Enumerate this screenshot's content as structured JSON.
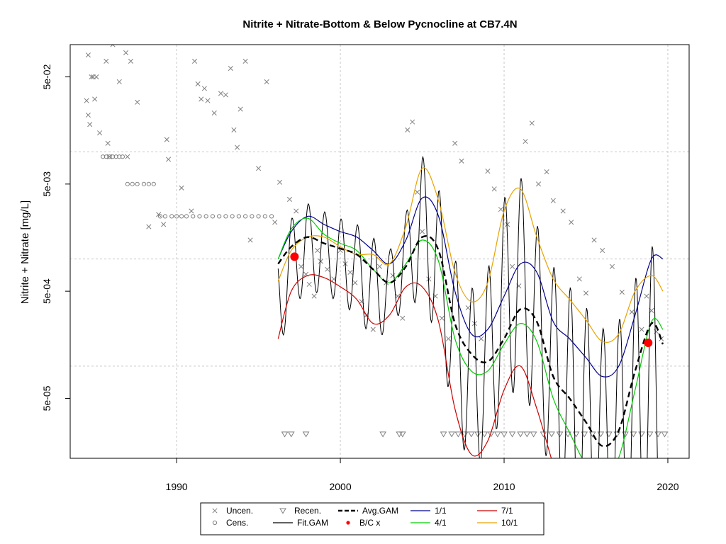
{
  "chart_data": {
    "type": "line",
    "title": "Nitrite + Nitrate-Bottom & Below Pycnocline at CB7.4N",
    "xlabel": "",
    "ylabel": "Nitrite + Nitrate [mg/L]",
    "xlim": [
      1983.5,
      2021.3
    ],
    "ylim_log10": [
      -4.86,
      -1.0
    ],
    "y_scale": "log",
    "x_ticks": [
      1990,
      2000,
      2010,
      2020
    ],
    "x_tick_labels": [
      "1990",
      "2000",
      "2010",
      "2020"
    ],
    "y_ticks": [
      5e-05,
      0.0005,
      0.005,
      0.05
    ],
    "y_tick_labels": [
      "5e-05",
      "5e-04",
      "5e-03",
      "5e-02"
    ],
    "grid_y": [
      0.0001,
      0.001,
      0.01,
      0.1
    ],
    "grid": true,
    "legend_position": "bottom-center",
    "legend": [
      {
        "id": "uncen",
        "label": "Uncen.",
        "symbol": "x",
        "color": "#808080"
      },
      {
        "id": "cens",
        "label": "Cens.",
        "symbol": "circle",
        "color": "#808080"
      },
      {
        "id": "recen",
        "label": "Recen.",
        "symbol": "triangle-down",
        "color": "#808080"
      },
      {
        "id": "fit",
        "label": "Fit.GAM",
        "symbol": "line",
        "color": "#000000"
      },
      {
        "id": "avg",
        "label": "Avg.GAM",
        "symbol": "dashed-line",
        "color": "#000000"
      },
      {
        "id": "bc",
        "label": "B/C x",
        "symbol": "dot",
        "color": "#ff0000"
      },
      {
        "id": "jan",
        "label": "1/1",
        "symbol": "line",
        "color": "#00008b"
      },
      {
        "id": "apr",
        "label": "4/1",
        "symbol": "line",
        "color": "#00cc00"
      },
      {
        "id": "jul",
        "label": "7/1",
        "symbol": "line",
        "color": "#cc0000"
      },
      {
        "id": "oct",
        "label": "10/1",
        "symbol": "line",
        "color": "#e8a200"
      }
    ],
    "avg_gam": {
      "name": "Avg.GAM",
      "x": [
        1996.2,
        1997,
        1998,
        1999,
        2000,
        2001,
        2002,
        2003,
        2004,
        2005,
        2006,
        2007,
        2008,
        2009,
        2010,
        2011,
        2012,
        2013,
        2014,
        2015,
        2016,
        2017,
        2018,
        2019,
        2019.7
      ],
      "y": [
        0.0009,
        0.0013,
        0.0016,
        0.0014,
        0.00125,
        0.0011,
        0.0008,
        0.0006,
        0.00085,
        0.0016,
        0.0012,
        0.00025,
        0.00013,
        0.00011,
        0.00018,
        0.00034,
        0.00026,
        8e-05,
        5e-05,
        3e-05,
        1.8e-05,
        2.5e-05,
        9e-05,
        0.00025,
        0.00016
      ]
    },
    "seasonal": [
      {
        "name": "1/1",
        "x": [
          1996.2,
          1997,
          1998,
          1999,
          2000,
          2001,
          2002,
          2003,
          2004,
          2005,
          2006,
          2007,
          2008,
          2009,
          2010,
          2011,
          2012,
          2013,
          2014,
          2015,
          2016,
          2017,
          2018,
          2019,
          2019.7
        ],
        "y": [
          0.001,
          0.0018,
          0.0025,
          0.0021,
          0.0018,
          0.0016,
          0.0012,
          0.0009,
          0.0015,
          0.0037,
          0.0025,
          0.0005,
          0.0002,
          0.00022,
          0.00045,
          0.0009,
          0.00075,
          0.00026,
          0.00018,
          0.00012,
          8e-05,
          0.0001,
          0.0003,
          0.001,
          0.001
        ]
      },
      {
        "name": "4/1",
        "x": [
          1996.2,
          1997,
          1998,
          1999,
          2000,
          2001,
          2002,
          2003,
          2004,
          2005,
          2006,
          2007,
          2008,
          2009,
          2010,
          2011,
          2012,
          2013,
          2014,
          2015,
          2016,
          2017,
          2018,
          2019,
          2019.7
        ],
        "y": [
          0.001,
          0.0019,
          0.0024,
          0.0017,
          0.0014,
          0.0012,
          0.0008,
          0.0006,
          0.0009,
          0.0015,
          0.00095,
          0.00018,
          9e-05,
          9e-05,
          0.00016,
          0.00025,
          0.00017,
          5e-05,
          2.4e-05,
          1.2e-05,
          9e-06,
          1.4e-05,
          6e-05,
          0.00026,
          0.00022
        ]
      },
      {
        "name": "7/1",
        "x": [
          1996.2,
          1997,
          1998,
          1999,
          2000,
          2001,
          2002,
          2003,
          2004,
          2005,
          2006,
          2007,
          2008,
          2009,
          2010,
          2011,
          2012,
          2013,
          2014
        ],
        "y": [
          0.00018,
          0.0005,
          0.0007,
          0.00067,
          0.00055,
          0.00042,
          0.00025,
          0.0003,
          0.00055,
          0.00055,
          0.00026,
          4e-05,
          1.5e-05,
          2e-05,
          6e-05,
          0.0001,
          4e-05,
          1.2e-05,
          4e-06
        ]
      },
      {
        "name": "10/1",
        "x": [
          1996.2,
          1997,
          1998,
          1999,
          2000,
          2001,
          2002,
          2003,
          2004,
          2005,
          2006,
          2007,
          2008,
          2009,
          2010,
          2011,
          2012,
          2013,
          2014,
          2015,
          2016,
          2017,
          2018,
          2019,
          2019.7
        ],
        "y": [
          0.00062,
          0.0012,
          0.0016,
          0.0016,
          0.0013,
          0.0011,
          0.0011,
          0.0009,
          0.002,
          0.007,
          0.0035,
          0.00075,
          0.0004,
          0.0006,
          0.0028,
          0.0045,
          0.0016,
          0.00065,
          0.00042,
          0.00027,
          0.00017,
          0.0002,
          0.0005,
          0.0007,
          0.0005
        ]
      }
    ],
    "bc_points": [
      {
        "x": 1997.2,
        "y": 0.00105
      },
      {
        "x": 2018.8,
        "y": 0.000165
      }
    ],
    "uncensored_x_points": {
      "x": [
        1984.5,
        1984.6,
        1984.7,
        1984.9,
        1985.1,
        1985.3,
        1984.6,
        1985.7,
        1985.8,
        1985.9,
        1986.1,
        1986.5,
        1986.9,
        1987.2,
        1984.8,
        1985.0,
        1987.0,
        1987.6,
        1988.3,
        1988.9,
        1989.2,
        1989.4,
        1989.5,
        1990.3,
        1990.9,
        1991.1,
        1991.3,
        1991.5,
        1991.7,
        1991.9,
        1992.3,
        1992.7,
        1993.0,
        1993.3,
        1993.5,
        1993.7,
        1993.9,
        1994.2,
        1994.5,
        1995.0,
        1995.5,
        1996.0,
        1996.3,
        1996.9,
        1997.3,
        1997.6,
        1997.9,
        1998.1,
        1998.4,
        1998.6,
        1998.8,
        1999.2,
        1999.6,
        2000.0,
        2000.3,
        2000.6,
        2000.9,
        2001.3,
        2001.6,
        2002.0,
        2002.4,
        2002.8,
        2003.2,
        2003.5,
        2003.8,
        2004.1,
        2004.4,
        2004.7,
        2005.0,
        2005.4,
        2005.8,
        2006.2,
        2006.6,
        2007.0,
        2007.4,
        2007.8,
        2008.2,
        2008.6,
        2009.0,
        2009.4,
        2009.8,
        2010.2,
        2010.5,
        2010.9,
        2011.3,
        2011.7,
        2012.1,
        2012.6,
        2013.0,
        2013.6,
        2014.1,
        2014.6,
        2015.0,
        2015.5,
        2016.0,
        2016.6,
        2017.2,
        2017.8,
        2018.4,
        2018.7,
        2019.0,
        2019.3,
        2019.6
      ],
      "y": [
        0.03,
        0.022,
        0.018,
        0.05,
        0.05,
        0.015,
        0.08,
        0.07,
        0.012,
        0.009,
        0.1,
        0.045,
        0.084,
        0.07,
        0.05,
        0.031,
        0.009,
        0.029,
        0.002,
        0.0026,
        0.0021,
        0.013,
        0.0085,
        0.0046,
        0.0028,
        0.07,
        0.043,
        0.031,
        0.039,
        0.03,
        0.023,
        0.035,
        0.034,
        0.06,
        0.016,
        0.011,
        0.025,
        0.07,
        0.0015,
        0.007,
        0.045,
        0.0022,
        0.0052,
        0.0036,
        0.0028,
        0.00085,
        0.00072,
        0.00058,
        0.00045,
        0.0012,
        0.00095,
        0.0008,
        0.00065,
        0.0012,
        0.0009,
        0.00075,
        0.0006,
        0.0004,
        0.0003,
        0.00022,
        0.00085,
        0.0006,
        0.0007,
        0.00045,
        0.00028,
        0.016,
        0.019,
        0.0042,
        0.0018,
        0.00065,
        0.00045,
        0.00028,
        0.00018,
        0.012,
        0.0082,
        0.00035,
        0.00025,
        0.00018,
        0.0066,
        0.0045,
        0.0029,
        0.0021,
        0.00085,
        0.00056,
        0.0125,
        0.0185,
        0.005,
        0.0065,
        0.0035,
        0.0028,
        0.0022,
        0.00065,
        0.00048,
        0.0015,
        0.0012,
        0.00085,
        0.00049,
        0.00032,
        0.00022,
        0.00045,
        0.00033,
        0.00021,
        0.00018
      ]
    },
    "censored_circle_points": {
      "x": [
        1985.5,
        1985.7,
        1985.9,
        1986.1,
        1986.3,
        1986.5,
        1986.7,
        1987.0,
        1987.3,
        1987.6,
        1988.0,
        1988.3,
        1988.6,
        1989.0,
        1989.3,
        1989.7,
        1990.0,
        1990.3,
        1990.6,
        1991.0,
        1991.4,
        1991.8,
        1992.2,
        1992.6,
        1993.0,
        1993.4,
        1993.8,
        1994.2,
        1994.6,
        1995.0,
        1995.4,
        1995.8
      ],
      "y": [
        0.009,
        0.009,
        0.009,
        0.009,
        0.009,
        0.009,
        0.009,
        0.005,
        0.005,
        0.005,
        0.005,
        0.005,
        0.005,
        0.0025,
        0.0025,
        0.0025,
        0.0025,
        0.0025,
        0.0025,
        0.0025,
        0.0025,
        0.0025,
        0.0025,
        0.0025,
        0.0025,
        0.0025,
        0.0025,
        0.0025,
        0.0025,
        0.0025,
        0.0025,
        0.0025
      ]
    },
    "recensored_triangle_points": {
      "x": [
        1996.6,
        1997.0,
        1997.9,
        2002.6,
        2003.6,
        2003.8,
        2006.3,
        2006.8,
        2007.2,
        2007.6,
        2008.0,
        2008.4,
        2008.8,
        2009.2,
        2009.6,
        2010.0,
        2010.5,
        2011.0,
        2011.4,
        2011.8,
        2012.4,
        2012.9,
        2013.4,
        2013.9,
        2014.4,
        2014.9,
        2015.4,
        2015.9,
        2016.4,
        2016.9,
        2017.4,
        2017.9,
        2018.4,
        2018.9,
        2019.4,
        2019.8
      ],
      "y": [
        2.32e-05,
        2.32e-05,
        2.32e-05,
        2.32e-05,
        2.32e-05,
        2.32e-05,
        2.32e-05,
        2.32e-05,
        2.32e-05,
        2.32e-05,
        2.32e-05,
        2.32e-05,
        2.32e-05,
        2.32e-05,
        2.32e-05,
        2.32e-05,
        2.32e-05,
        2.32e-05,
        2.32e-05,
        2.32e-05,
        2.32e-05,
        2.32e-05,
        2.32e-05,
        2.32e-05,
        2.32e-05,
        2.32e-05,
        2.32e-05,
        2.32e-05,
        2.32e-05,
        2.32e-05,
        2.32e-05,
        2.32e-05,
        2.32e-05,
        2.32e-05,
        2.32e-05,
        2.32e-05
      ]
    }
  }
}
